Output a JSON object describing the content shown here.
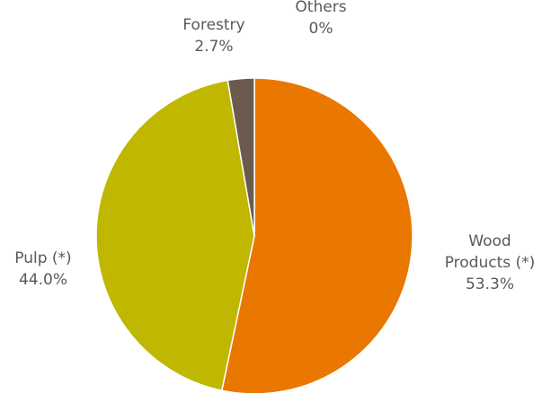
{
  "chart_data": {
    "type": "pie",
    "title": "",
    "slices": [
      {
        "label": "Wood Products (*)",
        "label_lines": [
          "Wood",
          "Products (*)"
        ],
        "value": 53.3,
        "value_label": "53.3%",
        "color": "#EA7700"
      },
      {
        "label": "Pulp (*)",
        "label_lines": [
          "Pulp (*)"
        ],
        "value": 44.0,
        "value_label": "44.0%",
        "color": "#C0B700"
      },
      {
        "label": "Forestry",
        "label_lines": [
          "Forestry"
        ],
        "value": 2.7,
        "value_label": "2.7%",
        "color": "#6B5B4E"
      },
      {
        "label": "Others",
        "label_lines": [
          "Others"
        ],
        "value": 0,
        "value_label": "0%",
        "color": "#A5A5A5"
      }
    ],
    "start_angle": "12 o'clock",
    "direction": "clockwise",
    "legend": "none",
    "label_color": "#595959"
  }
}
